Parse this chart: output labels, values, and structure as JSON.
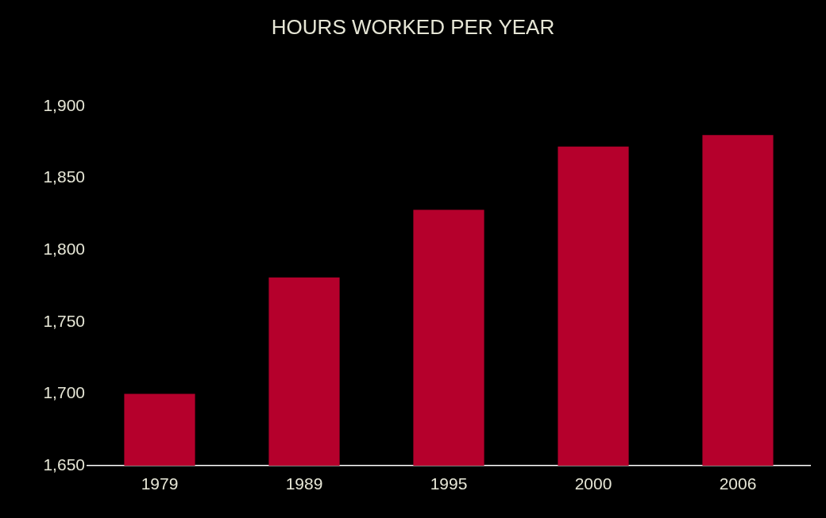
{
  "chart_data": {
    "type": "bar",
    "title": "HOURS WORKED PER YEAR",
    "categories": [
      "1979",
      "1989",
      "1995",
      "2000",
      "2006"
    ],
    "values": [
      1700,
      1781,
      1828,
      1872,
      1880
    ],
    "color": "#b5002c",
    "ylim": [
      1650,
      1900
    ],
    "yticks": [
      {
        "value": 1650,
        "label": "1,650"
      },
      {
        "value": 1700,
        "label": "1,700"
      },
      {
        "value": 1750,
        "label": "1,750"
      },
      {
        "value": 1800,
        "label": "1,800"
      },
      {
        "value": 1850,
        "label": "1,850"
      },
      {
        "value": 1900,
        "label": "1,900"
      }
    ],
    "grid": false
  }
}
